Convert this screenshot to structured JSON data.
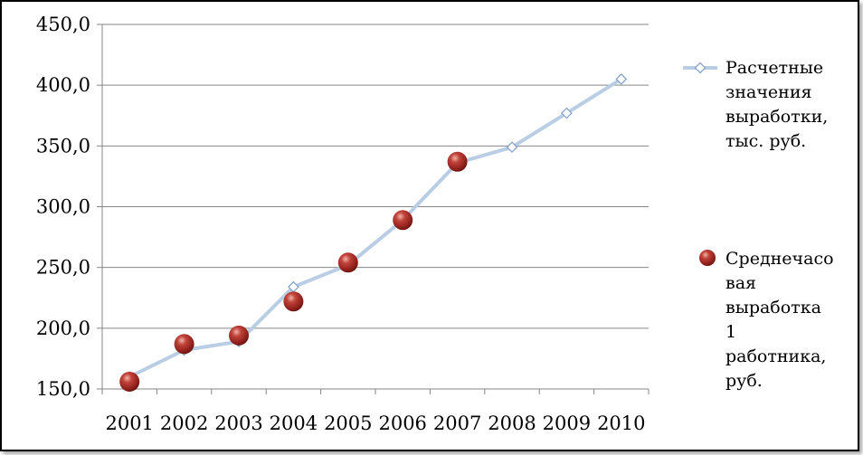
{
  "chart_data": {
    "type": "line",
    "title": "",
    "xlabel": "",
    "ylabel": "",
    "categories": [
      "2001",
      "2002",
      "2003",
      "2004",
      "2005",
      "2006",
      "2007",
      "2008",
      "2009",
      "2010"
    ],
    "ylim": [
      150,
      450
    ],
    "yticks": [
      "150,0",
      "200,0",
      "250,0",
      "300,0",
      "350,0",
      "400,0",
      "450,0"
    ],
    "grid": true,
    "legend_position": "right",
    "series": [
      {
        "name": "Расчетные значения выработки, тыс. руб.",
        "legend_lines": [
          "Расчетные",
          "значения",
          "выработки,",
          "тыс. руб."
        ],
        "style": "line-diamond",
        "color": "#b9cde5",
        "values": [
          160,
          182,
          189,
          234,
          252,
          289,
          336,
          349,
          377,
          405
        ]
      },
      {
        "name": "Среднечасовая выработка 1 работника, руб.",
        "legend_lines": [
          "Среднечасо",
          "вая",
          "выработка",
          "1",
          "работника,",
          "руб."
        ],
        "style": "sphere-marker",
        "color": "#a52a2a",
        "values": [
          156,
          187,
          194,
          222,
          254,
          289,
          337,
          null,
          null,
          null
        ]
      }
    ]
  }
}
